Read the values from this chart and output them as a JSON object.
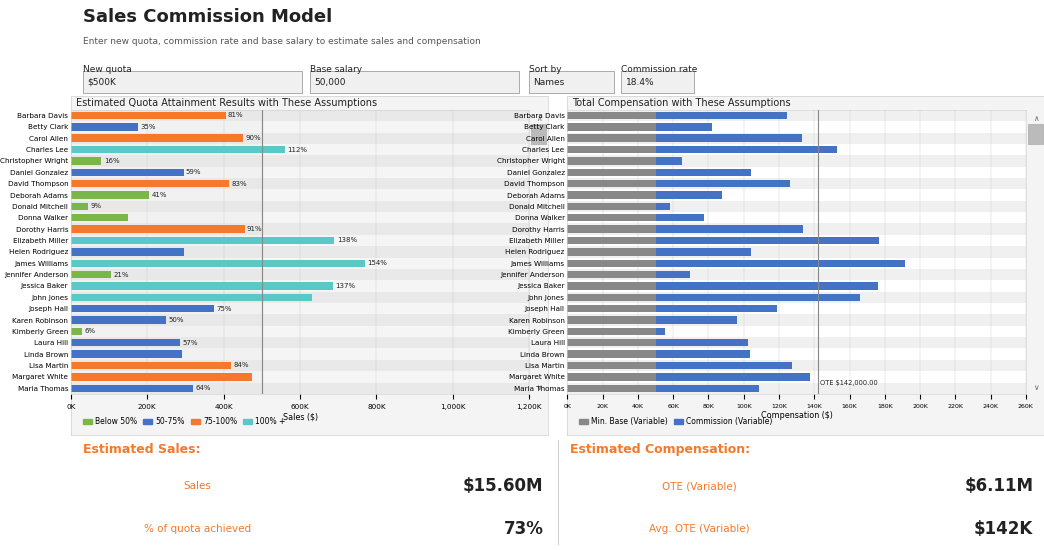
{
  "title": "Sales Commission Model",
  "subtitle": "Enter new quota, commission rate and base salary to estimate sales and compensation",
  "controls": {
    "new_quota_label": "New quota",
    "new_quota_value": "$500K",
    "base_salary_label": "Base salary",
    "base_salary_value": "50,000",
    "sort_by_label": "Sort by",
    "sort_by_value": "Names",
    "commission_rate_label": "Commission rate",
    "commission_rate_value": "18.4%"
  },
  "left_chart_title": "Estimated Quota Attainment Results with These Assumptions",
  "right_chart_title": "Total Compensation with These Assumptions",
  "sales_persons": [
    "Barbara Davis",
    "Betty Clark",
    "Carol Allen",
    "Charles Lee",
    "Christopher Wright",
    "Daniel Gonzalez",
    "David Thompson",
    "Deborah Adams",
    "Donald Mitchell",
    "Donna Walker",
    "Dorothy Harris",
    "Elizabeth Miller",
    "Helen Rodriguez",
    "James Williams",
    "Jennifer Anderson",
    "Jessica Baker",
    "John Jones",
    "Joseph Hall",
    "Karen Robinson",
    "Kimberly Green",
    "Laura Hill",
    "Linda Brown",
    "Lisa Martin",
    "Margaret White",
    "Maria Thomas"
  ],
  "sales_values": [
    405000,
    175000,
    450000,
    560000,
    80000,
    295000,
    415000,
    205000,
    45000,
    150000,
    455000,
    690000,
    295000,
    770000,
    105000,
    685000,
    630000,
    375000,
    250000,
    30000,
    285000,
    290000,
    420000,
    475000,
    320000
  ],
  "sales_pct": [
    81,
    35,
    90,
    112,
    16,
    59,
    83,
    41,
    9,
    null,
    91,
    138,
    null,
    154,
    21,
    137,
    null,
    75,
    50,
    6,
    57,
    null,
    84,
    null,
    64
  ],
  "quota": 500000,
  "bar_colors_left": [
    "#f4792b",
    "#4472c4",
    "#f4792b",
    "#5bc8c8",
    "#7ab648",
    "#4472c4",
    "#f4792b",
    "#7ab648",
    "#7ab648",
    "#7ab648",
    "#f4792b",
    "#5bc8c8",
    "#4472c4",
    "#5bc8c8",
    "#7ab648",
    "#5bc8c8",
    "#5bc8c8",
    "#4472c4",
    "#4472c4",
    "#7ab648",
    "#4472c4",
    "#4472c4",
    "#f4792b",
    "#f4792b",
    "#4472c4"
  ],
  "base_salary": 50000,
  "commission_rate": 0.184,
  "comp_base": [
    50000,
    50000,
    50000,
    50000,
    50000,
    50000,
    50000,
    50000,
    50000,
    50000,
    50000,
    50000,
    50000,
    50000,
    50000,
    50000,
    50000,
    50000,
    50000,
    50000,
    50000,
    50000,
    50000,
    50000,
    50000
  ],
  "left_legend": [
    {
      "label": "Below 50%",
      "color": "#7ab648"
    },
    {
      "label": "50-75%",
      "color": "#4472c4"
    },
    {
      "label": "75-100%",
      "color": "#f4792b"
    },
    {
      "label": "100% +",
      "color": "#5bc8c8"
    }
  ],
  "right_legend": [
    {
      "label": "Min. Base (Variable)",
      "color": "#888888"
    },
    {
      "label": "Commission (Variable)",
      "color": "#4472c4"
    }
  ],
  "ote_line": 142000,
  "estimated_sales_label": "Estimated Sales:",
  "estimated_sales_value": "$15.60M",
  "sales_label": "Sales",
  "pct_quota_label": "% of quota achieved",
  "pct_quota_value": "73%",
  "estimated_comp_label": "Estimated Compensation:",
  "ote_variable_label": "OTE (Variable)",
  "ote_variable_value": "$6.11M",
  "avg_ote_label": "Avg. OTE (Variable)",
  "avg_ote_value": "$142K",
  "bg_color": "#ffffff",
  "border_color": "#d0d0d0",
  "text_dark": "#222222",
  "text_gray": "#555555",
  "orange_text": "#f4792b",
  "left_xlim": [
    0,
    1200000
  ],
  "right_xlim": [
    0,
    260000
  ]
}
